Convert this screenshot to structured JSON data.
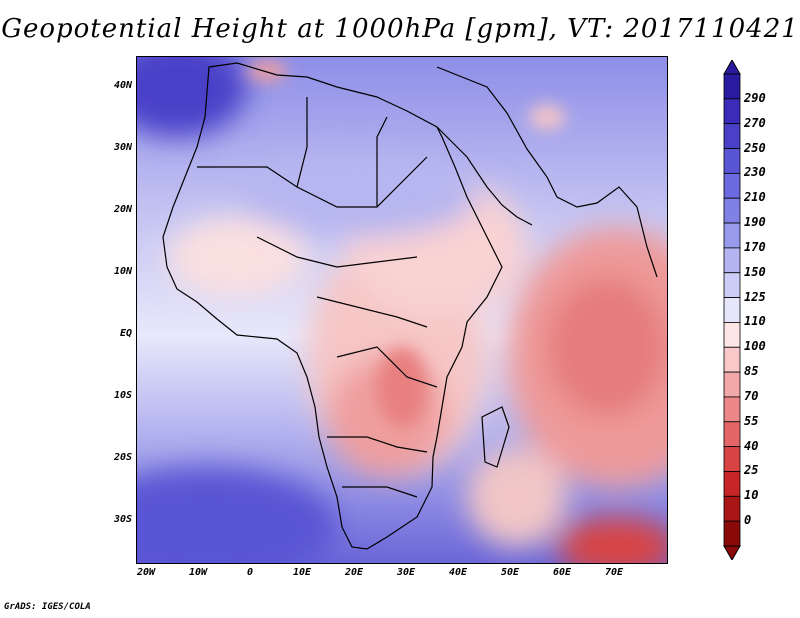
{
  "title": "Geopotential Height at 1000hPa [gpm], VT: 2017110421",
  "credit": "GrADS: IGES/COLA",
  "lat_labels": [
    "40N",
    "30N",
    "20N",
    "10N",
    "EQ",
    "10S",
    "20S",
    "30S"
  ],
  "lon_labels": [
    "20W",
    "10W",
    "0",
    "10E",
    "20E",
    "30E",
    "40E",
    "50E",
    "60E",
    "70E"
  ],
  "colorbar": {
    "levels": [
      "290",
      "270",
      "250",
      "230",
      "210",
      "190",
      "170",
      "150",
      "125",
      "110",
      "100",
      "85",
      "70",
      "55",
      "40",
      "25",
      "10",
      "0"
    ],
    "colors": [
      "#2a1aa0",
      "#3a2cb8",
      "#4a40c8",
      "#5a55d4",
      "#6c6ade",
      "#8080e6",
      "#9a9aec",
      "#b4b4f0",
      "#ccccf6",
      "#e6e6fa",
      "#fde6e6",
      "#f9c8c8",
      "#f2a8a8",
      "#ec8888",
      "#e46666",
      "#d84444",
      "#c82626",
      "#a81616",
      "#8a0a0a"
    ]
  }
}
